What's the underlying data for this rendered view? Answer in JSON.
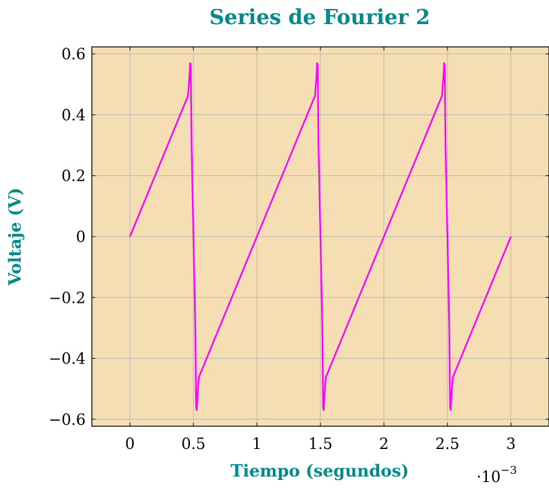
{
  "chart_data": {
    "type": "line",
    "title": "Series de Fourier 2",
    "xlabel": "Tiempo (segundos)",
    "ylabel": "Voltaje (V)",
    "x_scale_label": "·10",
    "x_scale_exponent": "−3",
    "xlim": [
      -0.3,
      3.3
    ],
    "ylim": [
      -0.623,
      0.623
    ],
    "grid": true,
    "x_ticks": [
      0,
      0.5,
      1,
      1.5,
      2,
      2.5,
      3
    ],
    "x_tick_labels": [
      "0",
      "0.5",
      "1",
      "1.5",
      "2",
      "2.5",
      "3"
    ],
    "y_ticks": [
      0.6,
      0.4,
      0.2,
      0,
      -0.2,
      -0.4,
      -0.6
    ],
    "y_tick_labels": [
      "0.6",
      "0.4",
      "0.2",
      "0",
      "−0.2",
      "−0.4",
      "−0.6"
    ],
    "colors": {
      "background": "#F5DEB3",
      "line": "#FF00FF",
      "title": "#008B8B",
      "grid": "#B8B8B8"
    },
    "series": [
      {
        "x": [
          0,
          0.457,
          0.468,
          0.474,
          0.479,
          0.485,
          0.5,
          0.515,
          0.521,
          0.526,
          0.532,
          0.543,
          1.457,
          1.468,
          1.474,
          1.479,
          1.485,
          1.5,
          1.515,
          1.521,
          1.526,
          1.532,
          1.543,
          2.457,
          2.468,
          2.474,
          2.479,
          2.485,
          2.5,
          2.515,
          2.521,
          2.526,
          2.532,
          2.543,
          3
        ],
        "y": [
          0,
          0.462,
          0.52,
          0.57,
          0.56,
          0.3,
          0,
          -0.3,
          -0.56,
          -0.57,
          -0.52,
          -0.462,
          0.462,
          0.52,
          0.57,
          0.56,
          0.3,
          0,
          -0.3,
          -0.56,
          -0.57,
          -0.52,
          -0.462,
          0.462,
          0.52,
          0.57,
          0.56,
          0.3,
          0,
          -0.3,
          -0.56,
          -0.57,
          -0.52,
          -0.462,
          0
        ]
      }
    ]
  }
}
